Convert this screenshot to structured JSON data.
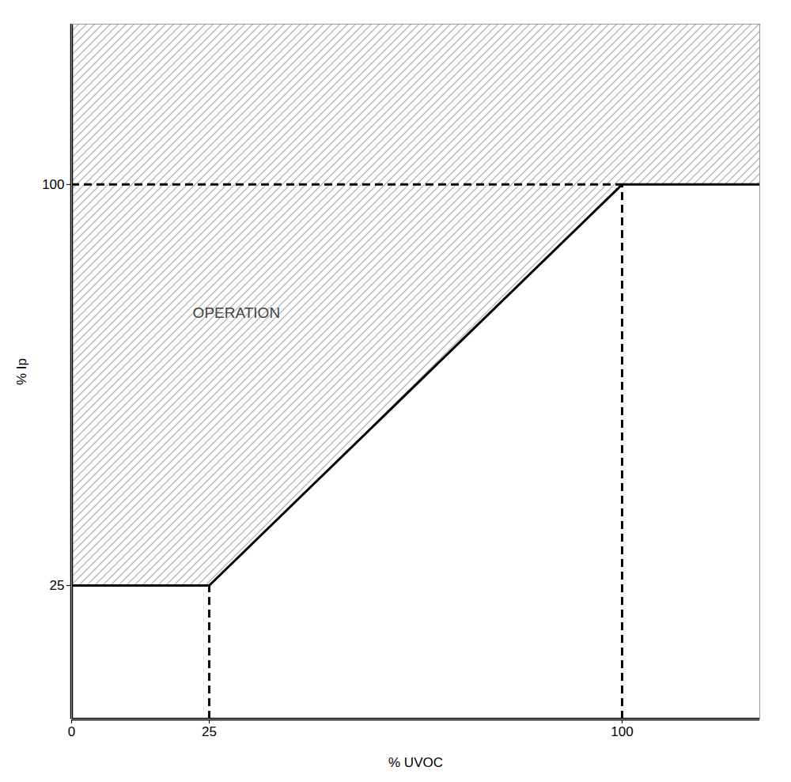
{
  "chart_data": {
    "type": "line",
    "xlabel": "% UVOC",
    "ylabel": "% Ip",
    "x": [
      0,
      25,
      100,
      125
    ],
    "values": [
      25,
      25,
      100,
      100
    ],
    "color": "#000000",
    "xlim": [
      0,
      125
    ],
    "ylim": [
      0,
      130
    ],
    "xticks": [
      0,
      25,
      100
    ],
    "yticks": [
      25,
      100
    ],
    "grid": false,
    "annotations": [
      {
        "text": "OPERATION",
        "x": 22,
        "y": 76
      }
    ]
  }
}
